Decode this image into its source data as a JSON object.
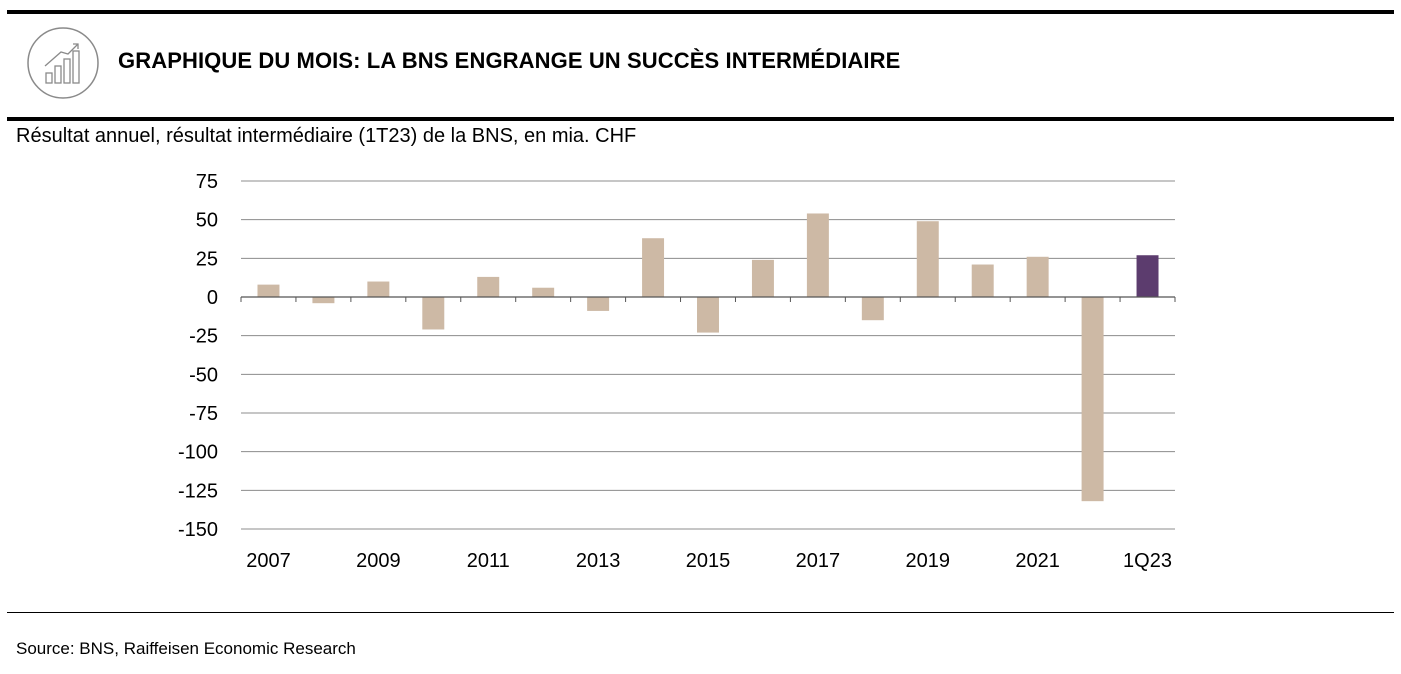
{
  "header": {
    "title": "GRAPHIQUE DU MOIS: LA BNS ENGRANGE UN SUCCÈS INTERMÉDIAIRE",
    "icon": "bar-chart-growth-icon"
  },
  "chart_subtitle": "Résultat annuel, résultat intermédiaire (1T23) de la BNS, en mia. CHF",
  "footer": {
    "source": "Source: BNS, Raiffeisen Economic Research"
  },
  "colors": {
    "bar": "#cdb9a5",
    "highlight": "#5c3c6e",
    "grid": "#8c8c8c"
  },
  "chart_data": {
    "type": "bar",
    "categories": [
      "2007",
      "2008",
      "2009",
      "2010",
      "2011",
      "2012",
      "2013",
      "2014",
      "2015",
      "2016",
      "2017",
      "2018",
      "2019",
      "2020",
      "2021",
      "2022",
      "1Q23"
    ],
    "values": [
      8,
      -4,
      10,
      -21,
      13,
      6,
      -9,
      38,
      -23,
      24,
      54,
      -15,
      49,
      21,
      26,
      -132,
      27
    ],
    "x_tick_labels": [
      "2007",
      "",
      "2009",
      "",
      "2011",
      "",
      "2013",
      "",
      "2015",
      "",
      "2017",
      "",
      "2019",
      "",
      "2021",
      "",
      "1Q23"
    ],
    "y_ticks": [
      75,
      50,
      25,
      0,
      -25,
      -50,
      -75,
      -100,
      -125,
      -150
    ],
    "ylim": [
      -150,
      75
    ],
    "highlight_category": "1Q23",
    "grid": true,
    "legend": false
  }
}
